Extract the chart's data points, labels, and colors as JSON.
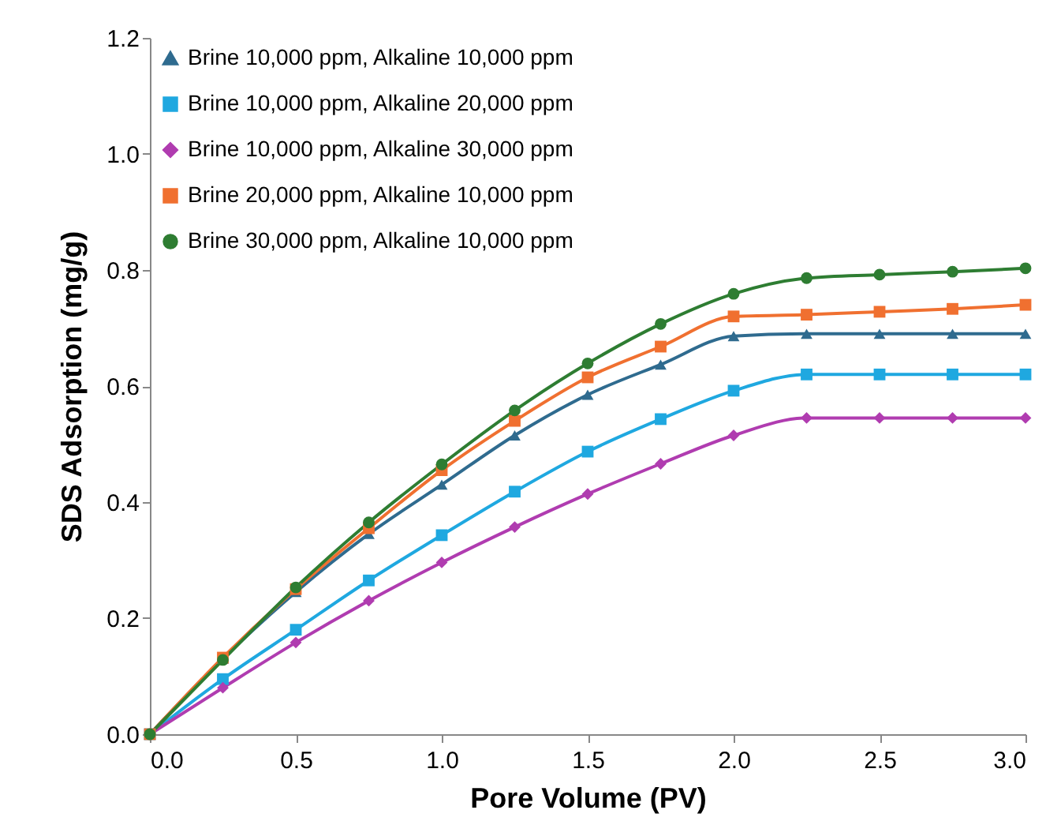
{
  "chart_data": {
    "type": "line",
    "xlabel": "Pore Volume (PV)",
    "ylabel": "SDS Adsorption (mg/g)",
    "x": [
      0,
      0.25,
      0.5,
      0.75,
      1.0,
      1.25,
      1.5,
      1.75,
      2.0,
      2.25,
      2.5,
      2.75,
      3.0
    ],
    "series": [
      {
        "name": "Brine 10,000 ppm, Alkaline 10,000 ppm",
        "color": "#2f6b8f",
        "marker": "triangle",
        "values": [
          0,
          0.13,
          0.245,
          0.345,
          0.43,
          0.515,
          0.585,
          0.637,
          0.686,
          0.69,
          0.69,
          0.69,
          0.69
        ]
      },
      {
        "name": "Brine 10,000 ppm, Alkaline 20,000 ppm",
        "color": "#1fa8e0",
        "marker": "square",
        "values": [
          0,
          0.095,
          0.18,
          0.265,
          0.343,
          0.418,
          0.487,
          0.543,
          0.592,
          0.62,
          0.62,
          0.62,
          0.62
        ]
      },
      {
        "name": "Brine 10,000 ppm, Alkaline 30,000 ppm",
        "color": "#b03cb0",
        "marker": "diamond",
        "values": [
          0,
          0.08,
          0.158,
          0.23,
          0.296,
          0.357,
          0.414,
          0.466,
          0.515,
          0.545,
          0.545,
          0.545,
          0.545
        ]
      },
      {
        "name": "Brine 20,000 ppm, Alkaline 10,000 ppm",
        "color": "#f07030",
        "marker": "square",
        "values": [
          0,
          0.132,
          0.25,
          0.355,
          0.455,
          0.54,
          0.615,
          0.668,
          0.72,
          0.723,
          0.728,
          0.733,
          0.74
        ]
      },
      {
        "name": "Brine 30,000 ppm, Alkaline 10,000 ppm",
        "color": "#2e7d32",
        "marker": "circle",
        "values": [
          0,
          0.128,
          0.253,
          0.365,
          0.465,
          0.558,
          0.639,
          0.707,
          0.759,
          0.786,
          0.792,
          0.797,
          0.803
        ]
      }
    ],
    "xlim": [
      0,
      3.0
    ],
    "xticks": [
      {
        "value": 0,
        "label": "0.0"
      },
      {
        "value": 0.5,
        "label": "0.5"
      },
      {
        "value": 1,
        "label": "1.0"
      },
      {
        "value": 1.5,
        "label": "1.5"
      },
      {
        "value": 2,
        "label": "2.0"
      },
      {
        "value": 2.5,
        "label": "2.5"
      },
      {
        "value": 3,
        "label": "3.0"
      }
    ],
    "ylim": [
      0,
      1.2
    ],
    "yticks": [
      {
        "value": 0,
        "label": "0.0"
      },
      {
        "value": 0.2,
        "label": "0.2"
      },
      {
        "value": 0.4,
        "label": "0.4"
      },
      {
        "value": 0.6,
        "label": "0.6"
      },
      {
        "value": 0.8,
        "label": "0.8"
      },
      {
        "value": 1,
        "label": "1.0"
      },
      {
        "value": 1.2,
        "label": "1.2"
      }
    ],
    "grid": false,
    "legend": "top left",
    "line_style": "solid"
  }
}
